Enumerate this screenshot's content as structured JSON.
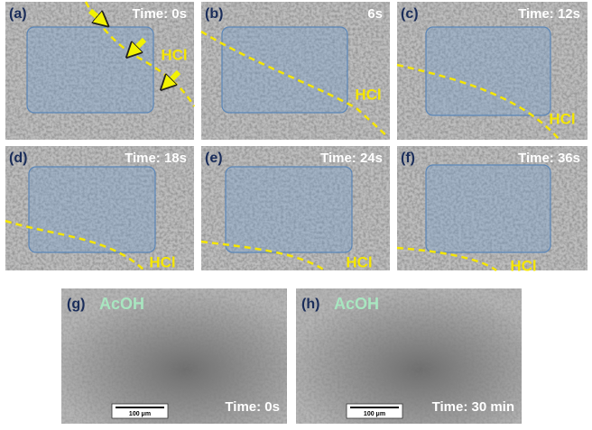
{
  "panels": [
    {
      "label": "(a)",
      "time": "Time: 0s",
      "reagent": "HCl"
    },
    {
      "label": "(b)",
      "time": "6s",
      "reagent": "HCl"
    },
    {
      "label": "(c)",
      "time": "Time: 12s",
      "reagent": "HCl"
    },
    {
      "label": "(d)",
      "time": "Time: 18s",
      "reagent": "HCl"
    },
    {
      "label": "(e)",
      "time": "Time: 24s",
      "reagent": "HCl"
    },
    {
      "label": "(f)",
      "time": "Time: 36s",
      "reagent": "HCl"
    },
    {
      "label": "(g)",
      "time": "Time: 0s",
      "reagent": "AcOH",
      "scale_bar": "100 μm"
    },
    {
      "label": "(h)",
      "time": "Time: 30 min",
      "reagent": "AcOH",
      "scale_bar": "100 μm"
    }
  ]
}
